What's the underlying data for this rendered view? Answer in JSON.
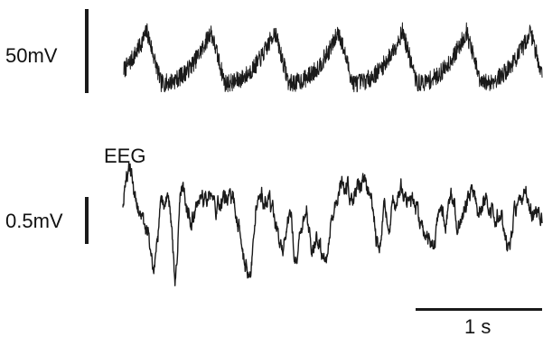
{
  "chart_data": [
    {
      "type": "line",
      "trace": "top",
      "scale_bar_label": "50mV",
      "scale_bar_value": 50,
      "scale_bar_unit": "mV",
      "time_window_s": [
        0,
        3.6
      ],
      "period_s": 0.55,
      "phase_s": 0.32,
      "baseline": 0.0,
      "peak": 1.0,
      "noise": 0.09,
      "seed": 7,
      "n_points": 1400,
      "color": "#1a1a1a"
    },
    {
      "type": "line",
      "trace": "bottom",
      "series_label": "EEG",
      "scale_bar_label": "0.5mV",
      "scale_bar_value": 0.5,
      "scale_bar_unit": "mV",
      "time_window_s": [
        0,
        3.6
      ],
      "color": "#1a1a1a",
      "n_points": 1400,
      "seed": 42,
      "deflections": [
        {
          "t": 0.06,
          "amp": 0.55,
          "w": 0.035
        },
        {
          "t": 0.2,
          "amp": -0.4,
          "w": 0.02
        },
        {
          "t": 0.27,
          "amp": -1.0,
          "w": 0.03
        },
        {
          "t": 0.45,
          "amp": -1.2,
          "w": 0.022
        },
        {
          "t": 0.5,
          "amp": 0.45,
          "w": 0.03
        },
        {
          "t": 0.6,
          "amp": -0.3,
          "w": 0.03
        },
        {
          "t": 0.75,
          "amp": 0.3,
          "w": 0.03
        },
        {
          "t": 1.08,
          "amp": -1.1,
          "w": 0.035
        },
        {
          "t": 1.2,
          "amp": 0.3,
          "w": 0.04
        },
        {
          "t": 1.36,
          "amp": -0.7,
          "w": 0.03
        },
        {
          "t": 1.48,
          "amp": -0.9,
          "w": 0.03
        },
        {
          "t": 1.64,
          "amp": -0.8,
          "w": 0.03
        },
        {
          "t": 1.73,
          "amp": -1.1,
          "w": 0.035
        },
        {
          "t": 1.9,
          "amp": 0.35,
          "w": 0.04
        },
        {
          "t": 2.04,
          "amp": 0.4,
          "w": 0.05
        },
        {
          "t": 2.2,
          "amp": -0.75,
          "w": 0.03
        },
        {
          "t": 2.4,
          "amp": 0.3,
          "w": 0.05
        },
        {
          "t": 2.58,
          "amp": -0.5,
          "w": 0.03
        },
        {
          "t": 2.66,
          "amp": -0.7,
          "w": 0.03
        },
        {
          "t": 2.88,
          "amp": -0.2,
          "w": 0.04
        },
        {
          "t": 3.0,
          "amp": 0.4,
          "w": 0.04
        },
        {
          "t": 3.3,
          "amp": -0.8,
          "w": 0.03
        },
        {
          "t": 3.45,
          "amp": 0.3,
          "w": 0.04
        }
      ]
    }
  ],
  "time_scale_bar": {
    "label": "1 s",
    "value": 1,
    "unit": "s"
  }
}
